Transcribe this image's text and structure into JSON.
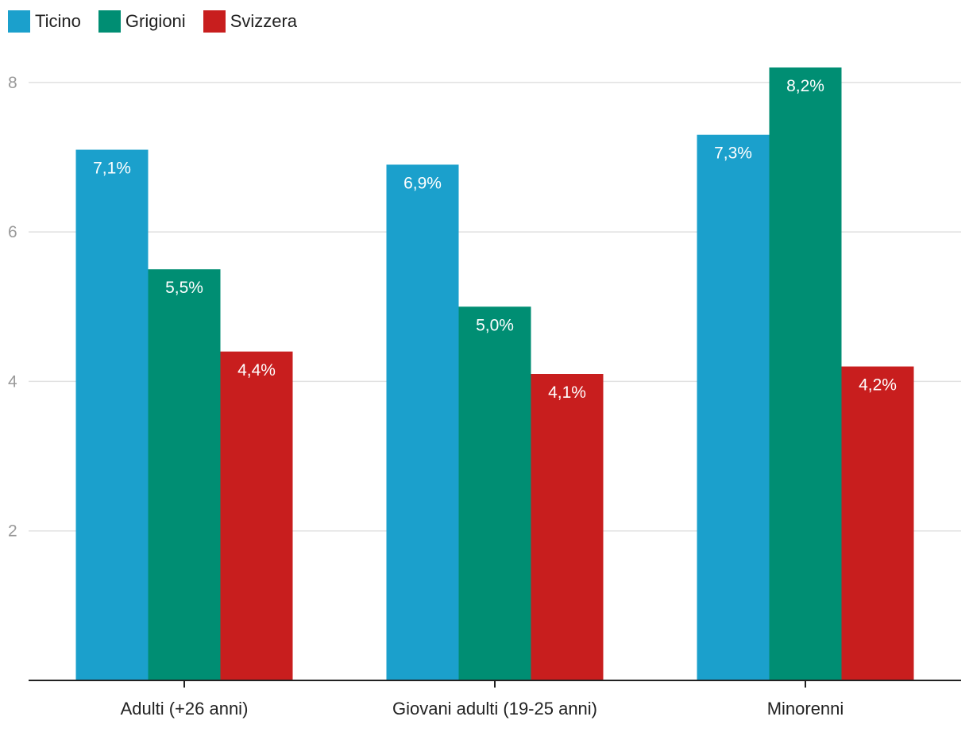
{
  "chart_data": {
    "type": "bar",
    "categories": [
      "Adulti (+26 anni)",
      "Giovani adulti (19-25 anni)",
      "Minorenni"
    ],
    "series": [
      {
        "name": "Ticino",
        "color": "#1ba0cc",
        "values": [
          7.1,
          6.9,
          7.3
        ],
        "labels": [
          "7,1%",
          "6,9%",
          "7,3%"
        ]
      },
      {
        "name": "Grigioni",
        "color": "#008e73",
        "values": [
          5.5,
          5.0,
          8.2
        ],
        "labels": [
          "5,5%",
          "5,0%",
          "8,2%"
        ]
      },
      {
        "name": "Svizzera",
        "color": "#c81e1e",
        "values": [
          4.4,
          4.1,
          4.2
        ],
        "labels": [
          "4,4%",
          "4,1%",
          "4,2%"
        ]
      }
    ],
    "yticks": [
      "2",
      "4",
      "6",
      "8"
    ],
    "ylim": [
      0,
      8.2
    ],
    "grid": true,
    "legend_position": "top-left",
    "xlabel": "",
    "ylabel": ""
  }
}
